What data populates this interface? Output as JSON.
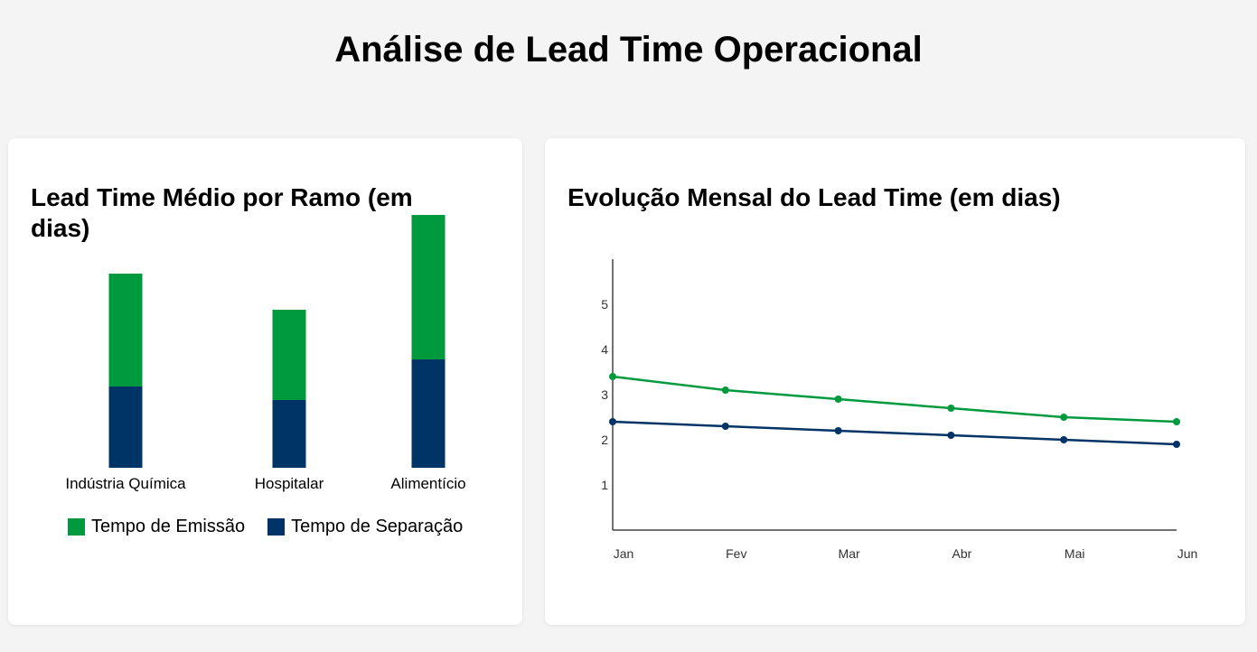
{
  "page": {
    "title": "Análise de Lead Time Operacional"
  },
  "colors": {
    "emissao": "#009a3e",
    "separacao": "#003366",
    "axis": "#444444"
  },
  "chart_data": [
    {
      "type": "bar",
      "stacked": true,
      "title": "Lead Time Médio por Ramo (em dias)",
      "categories": [
        "Indústria Química",
        "Hospitalar",
        "Alimentício"
      ],
      "series": [
        {
          "name": "Tempo de Separação",
          "values": [
            1.8,
            1.5,
            2.4
          ]
        },
        {
          "name": "Tempo de Emissão",
          "values": [
            2.5,
            2.0,
            3.2
          ]
        }
      ],
      "legend": "bottom"
    },
    {
      "type": "line",
      "title": "Evolução Mensal do Lead Time (em dias)",
      "x": [
        "Jan",
        "Fev",
        "Mar",
        "Abr",
        "Mai",
        "Jun"
      ],
      "yticks": [
        1,
        2,
        3,
        4,
        5
      ],
      "ylim": [
        0,
        6
      ],
      "series": [
        {
          "values": [
            3.4,
            3.1,
            2.9,
            2.7,
            2.5,
            2.4
          ]
        },
        {
          "values": [
            2.4,
            2.3,
            2.2,
            2.1,
            2.0,
            1.9
          ]
        }
      ],
      "grid": false
    }
  ]
}
